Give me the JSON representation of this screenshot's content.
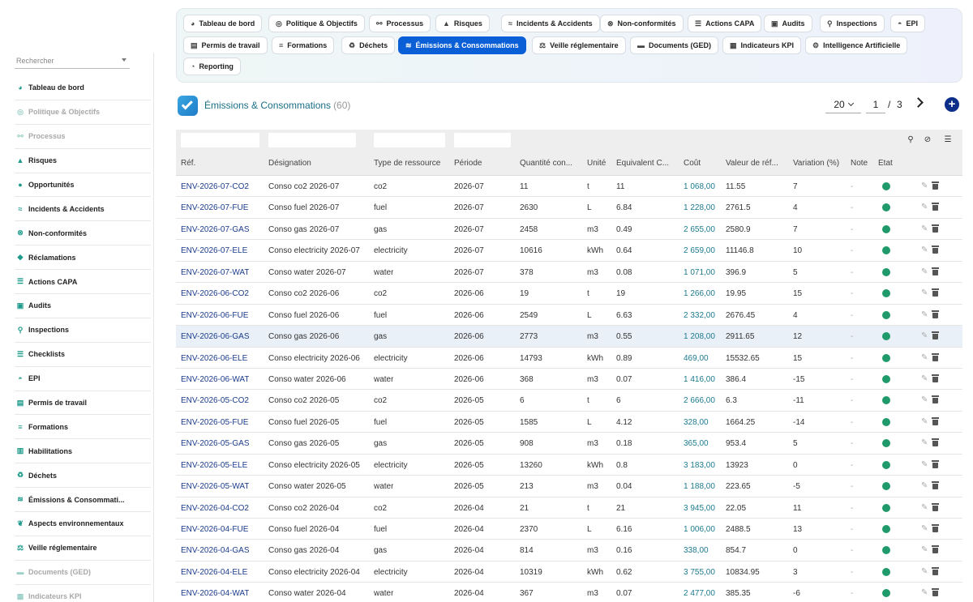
{
  "sidebar": {
    "search_placeholder": "Rechercher",
    "items": [
      {
        "label": "Tableau de bord",
        "icon": "dashboard-icon",
        "glyph": "◕",
        "disabled": false
      },
      {
        "label": "Politique & Objectifs",
        "icon": "target-icon",
        "glyph": "◎",
        "disabled": true
      },
      {
        "label": "Processus",
        "icon": "process-icon",
        "glyph": "⚯",
        "disabled": true
      },
      {
        "label": "Risques",
        "icon": "warning-icon",
        "glyph": "▲",
        "disabled": false
      },
      {
        "label": "Opportunités",
        "icon": "lightbulb-icon",
        "glyph": "●",
        "disabled": false
      },
      {
        "label": "Incidents & Accidents",
        "icon": "accident-icon",
        "glyph": "≈",
        "disabled": false
      },
      {
        "label": "Non-conformités",
        "icon": "cancel-icon",
        "glyph": "⊗",
        "disabled": false
      },
      {
        "label": "Réclamations",
        "icon": "comment-icon",
        "glyph": "◆",
        "disabled": false
      },
      {
        "label": "Actions CAPA",
        "icon": "list-icon",
        "glyph": "☰",
        "disabled": false
      },
      {
        "label": "Audits",
        "icon": "clipboard-icon",
        "glyph": "▣",
        "disabled": false
      },
      {
        "label": "Inspections",
        "icon": "search-icon",
        "glyph": "⚲",
        "disabled": false
      },
      {
        "label": "Checklists",
        "icon": "checklist-icon",
        "glyph": "☰",
        "disabled": false
      },
      {
        "label": "EPI",
        "icon": "helmet-icon",
        "glyph": "◓",
        "disabled": false
      },
      {
        "label": "Permis de travail",
        "icon": "document-icon",
        "glyph": "▤",
        "disabled": false
      },
      {
        "label": "Formations",
        "icon": "graduation-icon",
        "glyph": "≡",
        "disabled": false
      },
      {
        "label": "Habilitations",
        "icon": "badge-icon",
        "glyph": "▥",
        "disabled": false
      },
      {
        "label": "Déchets",
        "icon": "recycle-icon",
        "glyph": "♻",
        "disabled": false
      },
      {
        "label": "Émissions & Consommati...",
        "icon": "emissions-icon",
        "glyph": "≋",
        "disabled": false
      },
      {
        "label": "Aspects environnementaux",
        "icon": "leaf-icon",
        "glyph": "❦",
        "disabled": false
      },
      {
        "label": "Veille réglementaire",
        "icon": "scale-icon",
        "glyph": "⚖",
        "disabled": false
      },
      {
        "label": "Documents (GED)",
        "icon": "folder-icon",
        "glyph": "▬",
        "disabled": true
      },
      {
        "label": "Indicateurs KPI",
        "icon": "chart-icon",
        "glyph": "▦",
        "disabled": true
      }
    ]
  },
  "tabs": [
    {
      "label": "Tableau de bord",
      "icon": "dashboard-icon",
      "glyph": "◕",
      "active": false
    },
    {
      "label": "Politique & Objectifs",
      "icon": "target-icon",
      "glyph": "◎",
      "active": false
    },
    {
      "label": "Processus",
      "icon": "process-icon",
      "glyph": "⚯",
      "active": false
    },
    {
      "label": "Risques",
      "icon": "warning-icon",
      "glyph": "▲",
      "active": false
    },
    {
      "label": "Incidents & Accidents",
      "icon": "accident-icon",
      "glyph": "≈",
      "active": false
    },
    {
      "label": "Non-conformités",
      "icon": "cancel-icon",
      "glyph": "⊗",
      "active": false
    },
    {
      "label": "Actions CAPA",
      "icon": "list-icon",
      "glyph": "☰",
      "active": false
    },
    {
      "label": "Audits",
      "icon": "clipboard-icon",
      "glyph": "▣",
      "active": false
    },
    {
      "label": "Inspections",
      "icon": "search-icon",
      "glyph": "⚲",
      "active": false
    },
    {
      "label": "EPI",
      "icon": "helmet-icon",
      "glyph": "◓",
      "active": false
    },
    {
      "label": "Permis de travail",
      "icon": "document-icon",
      "glyph": "▤",
      "active": false
    },
    {
      "label": "Formations",
      "icon": "graduation-icon",
      "glyph": "≡",
      "active": false
    },
    {
      "label": "Déchets",
      "icon": "recycle-icon",
      "glyph": "♻",
      "active": false
    },
    {
      "label": "Émissions & Consommations",
      "icon": "emissions-icon",
      "glyph": "≋",
      "active": true
    },
    {
      "label": "Veille réglementaire",
      "icon": "scale-icon",
      "glyph": "⚖",
      "active": false
    },
    {
      "label": "Documents (GED)",
      "icon": "folder-icon",
      "glyph": "▬",
      "active": false
    },
    {
      "label": "Indicateurs KPI",
      "icon": "chart-icon",
      "glyph": "▦",
      "active": false
    },
    {
      "label": "Intelligence Artificielle",
      "icon": "ai-icon",
      "glyph": "⚙",
      "active": false
    },
    {
      "label": "Reporting",
      "icon": "reporting-icon",
      "glyph": "◔",
      "active": false
    }
  ],
  "header": {
    "title": "Émissions & Consommations",
    "count": "(60)"
  },
  "pagination": {
    "page_size": "20",
    "current_page": "1",
    "separator": "/",
    "total_pages": "3"
  },
  "table": {
    "columns": [
      "Réf.",
      "Désignation",
      "Type de ressource",
      "Période",
      "Quantité con...",
      "Unité",
      "Équivalent C...",
      "Coût",
      "Valeur de réf...",
      "Variation (%)",
      "Note",
      "État"
    ],
    "rows": [
      {
        "ref": "ENV-2026-07-CO2",
        "designation": "Conso co2 2026-07",
        "type": "co2",
        "periode": "2026-07",
        "quantite": "11",
        "unite": "t",
        "equivalent": "11",
        "cout": "1 068,00",
        "valeur": "11.55",
        "variation": "7",
        "note": "-"
      },
      {
        "ref": "ENV-2026-07-FUE",
        "designation": "Conso fuel 2026-07",
        "type": "fuel",
        "periode": "2026-07",
        "quantite": "2630",
        "unite": "L",
        "equivalent": "6.84",
        "cout": "1 228,00",
        "valeur": "2761.5",
        "variation": "4",
        "note": "-"
      },
      {
        "ref": "ENV-2026-07-GAS",
        "designation": "Conso gas 2026-07",
        "type": "gas",
        "periode": "2026-07",
        "quantite": "2458",
        "unite": "m3",
        "equivalent": "0.49",
        "cout": "2 655,00",
        "valeur": "2580.9",
        "variation": "7",
        "note": "-"
      },
      {
        "ref": "ENV-2026-07-ELE",
        "designation": "Conso electricity 2026-07",
        "type": "electricity",
        "periode": "2026-07",
        "quantite": "10616",
        "unite": "kWh",
        "equivalent": "0.64",
        "cout": "2 659,00",
        "valeur": "11146.8",
        "variation": "10",
        "note": "-"
      },
      {
        "ref": "ENV-2026-07-WAT",
        "designation": "Conso water 2026-07",
        "type": "water",
        "periode": "2026-07",
        "quantite": "378",
        "unite": "m3",
        "equivalent": "0.08",
        "cout": "1 071,00",
        "valeur": "396.9",
        "variation": "5",
        "note": "-"
      },
      {
        "ref": "ENV-2026-06-CO2",
        "designation": "Conso co2 2026-06",
        "type": "co2",
        "periode": "2026-06",
        "quantite": "19",
        "unite": "t",
        "equivalent": "19",
        "cout": "1 266,00",
        "valeur": "19.95",
        "variation": "15",
        "note": "-"
      },
      {
        "ref": "ENV-2026-06-FUE",
        "designation": "Conso fuel 2026-06",
        "type": "fuel",
        "periode": "2026-06",
        "quantite": "2549",
        "unite": "L",
        "equivalent": "6.63",
        "cout": "2 332,00",
        "valeur": "2676.45",
        "variation": "4",
        "note": "-"
      },
      {
        "ref": "ENV-2026-06-GAS",
        "designation": "Conso gas 2026-06",
        "type": "gas",
        "periode": "2026-06",
        "quantite": "2773",
        "unite": "m3",
        "equivalent": "0.55",
        "cout": "1 208,00",
        "valeur": "2911.65",
        "variation": "12",
        "note": "-",
        "highlight": true
      },
      {
        "ref": "ENV-2026-06-ELE",
        "designation": "Conso electricity 2026-06",
        "type": "electricity",
        "periode": "2026-06",
        "quantite": "14793",
        "unite": "kWh",
        "equivalent": "0.89",
        "cout": "469,00",
        "valeur": "15532.65",
        "variation": "15",
        "note": "-"
      },
      {
        "ref": "ENV-2026-06-WAT",
        "designation": "Conso water 2026-06",
        "type": "water",
        "periode": "2026-06",
        "quantite": "368",
        "unite": "m3",
        "equivalent": "0.07",
        "cout": "1 416,00",
        "valeur": "386.4",
        "variation": "-15",
        "note": "-"
      },
      {
        "ref": "ENV-2026-05-CO2",
        "designation": "Conso co2 2026-05",
        "type": "co2",
        "periode": "2026-05",
        "quantite": "6",
        "unite": "t",
        "equivalent": "6",
        "cout": "2 666,00",
        "valeur": "6.3",
        "variation": "-11",
        "note": "-"
      },
      {
        "ref": "ENV-2026-05-FUE",
        "designation": "Conso fuel 2026-05",
        "type": "fuel",
        "periode": "2026-05",
        "quantite": "1585",
        "unite": "L",
        "equivalent": "4.12",
        "cout": "328,00",
        "valeur": "1664.25",
        "variation": "-14",
        "note": "-"
      },
      {
        "ref": "ENV-2026-05-GAS",
        "designation": "Conso gas 2026-05",
        "type": "gas",
        "periode": "2026-05",
        "quantite": "908",
        "unite": "m3",
        "equivalent": "0.18",
        "cout": "365,00",
        "valeur": "953.4",
        "variation": "5",
        "note": "-"
      },
      {
        "ref": "ENV-2026-05-ELE",
        "designation": "Conso electricity 2026-05",
        "type": "electricity",
        "periode": "2026-05",
        "quantite": "13260",
        "unite": "kWh",
        "equivalent": "0.8",
        "cout": "3 183,00",
        "valeur": "13923",
        "variation": "0",
        "note": "-"
      },
      {
        "ref": "ENV-2026-05-WAT",
        "designation": "Conso water 2026-05",
        "type": "water",
        "periode": "2026-05",
        "quantite": "213",
        "unite": "m3",
        "equivalent": "0.04",
        "cout": "1 188,00",
        "valeur": "223.65",
        "variation": "-5",
        "note": "-"
      },
      {
        "ref": "ENV-2026-04-CO2",
        "designation": "Conso co2 2026-04",
        "type": "co2",
        "periode": "2026-04",
        "quantite": "21",
        "unite": "t",
        "equivalent": "21",
        "cout": "3 945,00",
        "valeur": "22.05",
        "variation": "11",
        "note": "-"
      },
      {
        "ref": "ENV-2026-04-FUE",
        "designation": "Conso fuel 2026-04",
        "type": "fuel",
        "periode": "2026-04",
        "quantite": "2370",
        "unite": "L",
        "equivalent": "6.16",
        "cout": "1 006,00",
        "valeur": "2488.5",
        "variation": "13",
        "note": "-"
      },
      {
        "ref": "ENV-2026-04-GAS",
        "designation": "Conso gas 2026-04",
        "type": "gas",
        "periode": "2026-04",
        "quantite": "814",
        "unite": "m3",
        "equivalent": "0.16",
        "cout": "338,00",
        "valeur": "854.7",
        "variation": "0",
        "note": "-"
      },
      {
        "ref": "ENV-2026-04-ELE",
        "designation": "Conso electricity 2026-04",
        "type": "electricity",
        "periode": "2026-04",
        "quantite": "10319",
        "unite": "kWh",
        "equivalent": "0.62",
        "cout": "3 755,00",
        "valeur": "10834.95",
        "variation": "3",
        "note": "-"
      },
      {
        "ref": "ENV-2026-04-WAT",
        "designation": "Conso water 2026-04",
        "type": "water",
        "periode": "2026-04",
        "quantite": "367",
        "unite": "m3",
        "equivalent": "0.07",
        "cout": "2 477,00",
        "valeur": "385.35",
        "variation": "-6",
        "note": "-"
      }
    ]
  },
  "colors": {
    "accent": "#0b5fd6",
    "state_ok": "#1f9a6a",
    "ref_link": "#1b3c8c",
    "cost": "#1d7b8f"
  }
}
